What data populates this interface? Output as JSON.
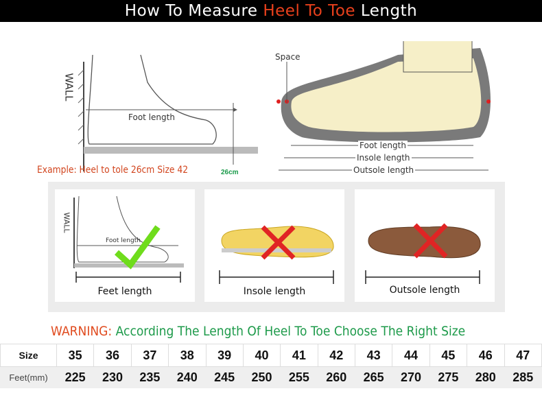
{
  "title": {
    "part1": "How To Measure ",
    "highlight": "Heel To Toe",
    "part2": " Length"
  },
  "diagram_left": {
    "wall": "WALL",
    "foot_length": "Foot length",
    "example": "Example: Heel to tole 26cm Size 42",
    "mark": "26cm"
  },
  "diagram_right": {
    "space": "Space",
    "foot_length": "Foot length",
    "insole_length": "Insole length",
    "outsole_length": "Outsole length"
  },
  "panels": [
    {
      "caption": "Feet length",
      "wall": "WALL",
      "foot_length": "Foot length",
      "verdict": "check-icon"
    },
    {
      "caption": "Insole length",
      "verdict": "cross-icon"
    },
    {
      "caption": "Outsole length",
      "verdict": "cross-icon"
    }
  ],
  "warning": {
    "label": "WARNING:",
    "text": "According The Length Of Heel To Toe Choose The Right Size"
  },
  "size_table": {
    "row_labels": [
      "Size",
      "Feet(mm)"
    ],
    "sizes": [
      "35",
      "36",
      "37",
      "38",
      "39",
      "40",
      "41",
      "42",
      "43",
      "44",
      "45",
      "46",
      "47"
    ],
    "feet_mm": [
      "225",
      "230",
      "235",
      "240",
      "245",
      "250",
      "255",
      "260",
      "265",
      "270",
      "275",
      "280",
      "285"
    ]
  },
  "colors": {
    "accent_red": "#e8401c",
    "warning_green": "#1d9a4a",
    "sole_gray": "#7a7a7a",
    "insole_yellow": "#f2d463"
  }
}
